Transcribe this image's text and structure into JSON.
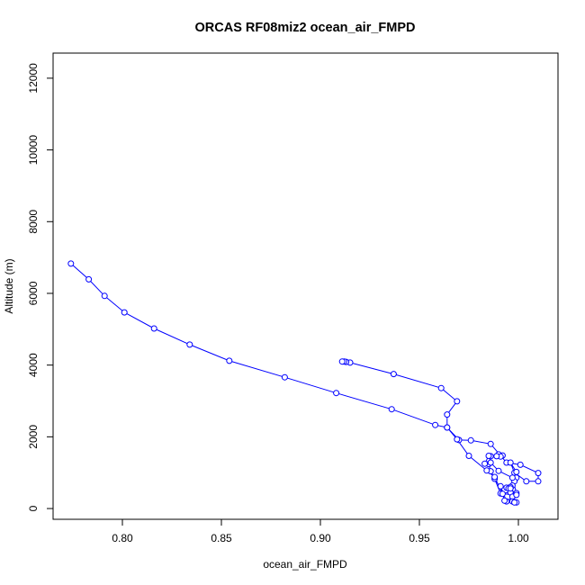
{
  "chart_data": {
    "type": "scatter",
    "title": "ORCAS RF08miz2 ocean_air_FMPD",
    "xlabel": "ocean_air_FMPD",
    "ylabel": "Altitude (m)",
    "xlim": [
      0.765,
      1.02
    ],
    "ylim": [
      -300,
      12700
    ],
    "xticks": [
      "0.80",
      "0.85",
      "0.90",
      "0.95",
      "1.00"
    ],
    "yticks": [
      "0",
      "2000",
      "4000",
      "6000",
      "8000",
      "10000",
      "12000"
    ],
    "grid": false,
    "series": [
      {
        "color": "#0000ff",
        "marker": "open-circle",
        "connected": true,
        "x": [
          0.774,
          0.783,
          0.791,
          0.801,
          0.816,
          0.834,
          0.854,
          0.882,
          0.908,
          0.936,
          0.958,
          0.964,
          0.97,
          0.976,
          0.986,
          0.994,
          1.001,
          1.01,
          1.01,
          1.004,
          0.998,
          0.996,
          0.999,
          0.999,
          0.998,
          0.997,
          0.996,
          0.994,
          0.995,
          0.996,
          0.991,
          0.988,
          0.986,
          0.985,
          0.986,
          0.99,
          0.992,
          0.991,
          0.989,
          0.985,
          0.983,
          0.986,
          0.99,
          0.997,
          0.999,
          0.997,
          0.994,
          0.991,
          0.993,
          0.997,
          0.998,
          0.999,
          0.998,
          0.996,
          0.999,
          0.992,
          0.988,
          0.984,
          0.975,
          0.969,
          0.964,
          0.964,
          0.969,
          0.961,
          0.937,
          0.915,
          0.913,
          0.912,
          0.911
        ],
        "y": [
          6830,
          6390,
          5930,
          5470,
          5020,
          4570,
          4120,
          3660,
          3220,
          2770,
          2330,
          2260,
          1910,
          1900,
          1800,
          1280,
          1220,
          990,
          760,
          760,
          1000,
          1280,
          1020,
          860,
          760,
          640,
          600,
          580,
          560,
          450,
          420,
          830,
          1040,
          1240,
          1460,
          1510,
          1480,
          1450,
          1460,
          1470,
          1250,
          1280,
          1050,
          860,
          430,
          330,
          200,
          620,
          220,
          200,
          180,
          170,
          170,
          560,
          380,
          410,
          880,
          1060,
          1470,
          1930,
          2260,
          2620,
          2990,
          3360,
          3750,
          4070,
          4090,
          4100,
          4100
        ]
      }
    ]
  }
}
